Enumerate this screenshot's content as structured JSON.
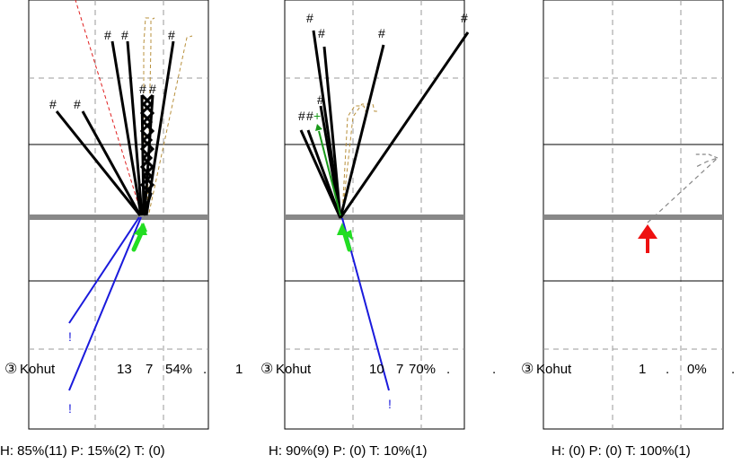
{
  "panels": [
    {
      "name": "Kohut",
      "number": "3",
      "stats": [
        "13",
        "7",
        "54%",
        ".",
        "1"
      ],
      "summary": "H: 85%(11)  P: 15%(2)  T: (0)"
    },
    {
      "name": "Kohut",
      "number": "3",
      "stats": [
        "10",
        "7",
        "70%",
        ".",
        "."
      ],
      "summary": "H: 90%(9)  P: (0)  T: 10%(1)"
    },
    {
      "name": "Kohut",
      "number": "3",
      "stats": [
        "1",
        ".",
        "0%",
        "."
      ],
      "summary": "H: (0)  P: (0)  T: 100%(1)"
    }
  ],
  "marks": {
    "hit": "#",
    "walk": "!",
    "circled_three": "③"
  },
  "colors": {
    "hit_line": "#000000",
    "walk_line": "#1a1adc",
    "foul_line": "#e01f1f",
    "arrow_green": "#22dd22",
    "arrow_red": "#ee1111",
    "dash_tan": "#b8903c",
    "dash_gray": "#888888",
    "baseline": "#888888"
  }
}
